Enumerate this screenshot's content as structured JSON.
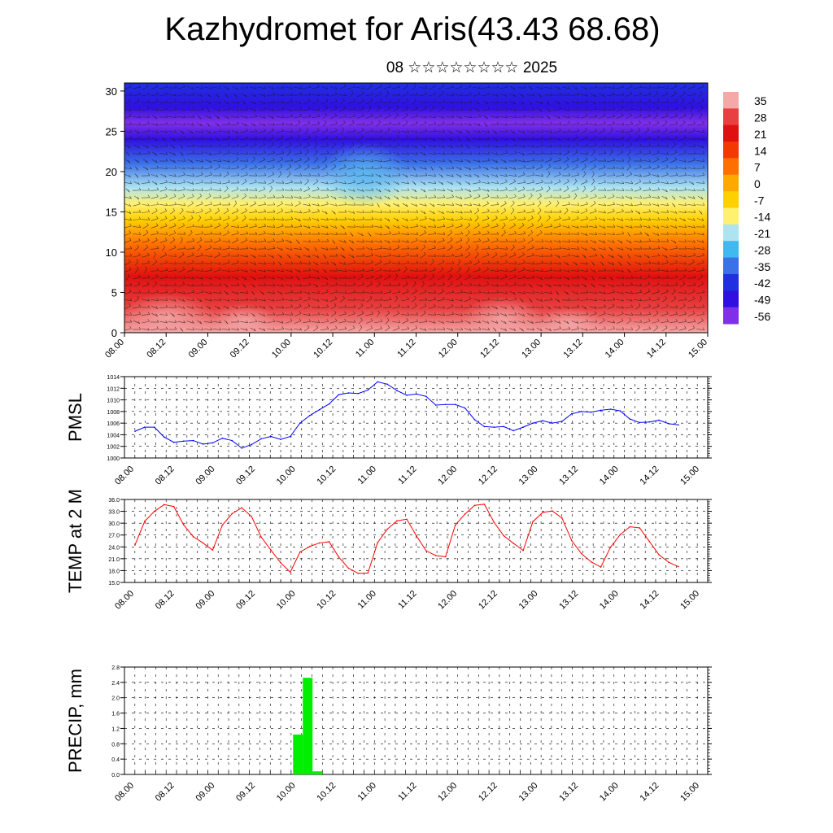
{
  "title": "Kazhydromet for Aris(43.43 68.68)",
  "subtitle": "08 ☆☆☆☆☆☆☆☆ 2025",
  "x_ticks": [
    "08.00",
    "08.12",
    "09.00",
    "09.12",
    "10.00",
    "10.12",
    "11.00",
    "11.12",
    "12.00",
    "12.12",
    "13.00",
    "13.12",
    "14.00",
    "14.12",
    "15.00"
  ],
  "chart_data": [
    {
      "type": "heatmap",
      "description_note": "",
      "ylabel": "",
      "ylim": [
        0,
        31
      ],
      "yticks": [
        0,
        5,
        10,
        15,
        20,
        25,
        30
      ],
      "colorbar": {
        "labels": [
          "35",
          "28",
          "21",
          "14",
          "7",
          "0",
          "-7",
          "-14",
          "-21",
          "-28",
          "-35",
          "-42",
          "-49",
          "-56"
        ],
        "colors": [
          "#f4a8a8",
          "#e84040",
          "#e01010",
          "#f23a00",
          "#ff7000",
          "#ffa800",
          "#ffd000",
          "#fff070",
          "#aee4f0",
          "#40b8f0",
          "#3a70e8",
          "#2030e0",
          "#3010e0",
          "#8030e8"
        ]
      },
      "profile": {
        "heights": [
          0,
          3,
          7,
          11,
          14,
          16,
          18,
          21,
          24,
          26,
          28,
          31
        ],
        "temps": [
          34,
          28,
          18,
          8,
          -4,
          -12,
          -24,
          -36,
          -49,
          -56,
          -52,
          -44
        ]
      }
    },
    {
      "type": "line",
      "ylabel": "PMSL",
      "ylim": [
        1000,
        1014
      ],
      "yticks": [
        1000,
        1002,
        1004,
        1006,
        1008,
        1010,
        1012,
        1014
      ],
      "color": "#0000ff",
      "values": [
        1004.6,
        1005.3,
        1005.3,
        1003.6,
        1002.7,
        1002.9,
        1003.0,
        1002.4,
        1002.6,
        1003.4,
        1003.0,
        1001.7,
        1002.3,
        1003.3,
        1003.7,
        1003.2,
        1003.7,
        1006.0,
        1007.3,
        1008.3,
        1009.3,
        1010.9,
        1011.2,
        1011.1,
        1011.7,
        1013.1,
        1012.7,
        1011.6,
        1010.8,
        1011.0,
        1010.6,
        1009.1,
        1009.2,
        1009.2,
        1008.6,
        1006.6,
        1005.4,
        1005.3,
        1005.4,
        1004.7,
        1005.3,
        1006.0,
        1006.4,
        1006.0,
        1006.3,
        1007.6,
        1008.0,
        1007.9,
        1008.2,
        1008.4,
        1008.1,
        1006.7,
        1006.1,
        1006.2,
        1006.5,
        1005.9,
        1005.7
      ]
    },
    {
      "type": "line",
      "ylabel": "TEMP at 2 M",
      "ylim": [
        15,
        36
      ],
      "yticks": [
        "15.0",
        "18.0",
        "21.0",
        "24.0",
        "27.0",
        "30.0",
        "33.0",
        "36.0"
      ],
      "color": "#ff0000",
      "values": [
        24.5,
        30.5,
        33.0,
        34.7,
        34.2,
        29.6,
        26.6,
        25.0,
        23.2,
        29.5,
        32.4,
        33.9,
        31.7,
        26.5,
        23.2,
        20.0,
        17.6,
        22.7,
        24.1,
        25.0,
        25.3,
        21.4,
        18.6,
        17.3,
        17.4,
        25.1,
        28.5,
        30.6,
        31.0,
        26.8,
        23.0,
        21.8,
        21.5,
        29.5,
        32.3,
        34.5,
        34.8,
        30.2,
        26.8,
        24.9,
        23.1,
        30.4,
        32.7,
        33.1,
        31.3,
        25.6,
        22.3,
        20.2,
        18.9,
        23.9,
        27.1,
        29.1,
        28.8,
        25.4,
        22.0,
        20.1,
        19.0
      ]
    },
    {
      "type": "bar",
      "ylabel": "PRECIP, mm",
      "ylim": [
        0,
        2.8
      ],
      "yticks": [
        "0.0",
        "0.4",
        "0.8",
        "1.2",
        "1.6",
        "2.0",
        "2.4",
        "2.8"
      ],
      "color": "#00ee00",
      "bars": [
        {
          "x": "10.03",
          "value": 1.04
        },
        {
          "x": "10.06",
          "value": 2.52
        },
        {
          "x": "10.09",
          "value": 0.08
        }
      ]
    }
  ]
}
